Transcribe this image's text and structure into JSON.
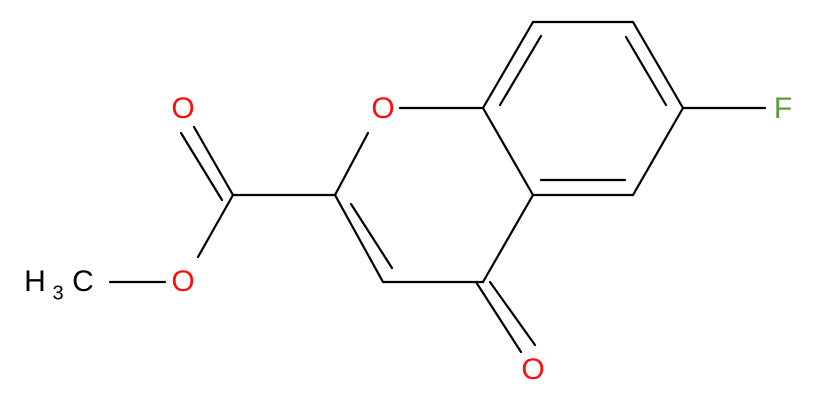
{
  "atoms": [
    {
      "label": "O"
    },
    {
      "label": "O"
    },
    {
      "label": "O"
    },
    {
      "label": "O"
    },
    {
      "label": "F"
    }
  ],
  "methyl": {
    "h": "H",
    "sub": "3",
    "c": "C"
  }
}
